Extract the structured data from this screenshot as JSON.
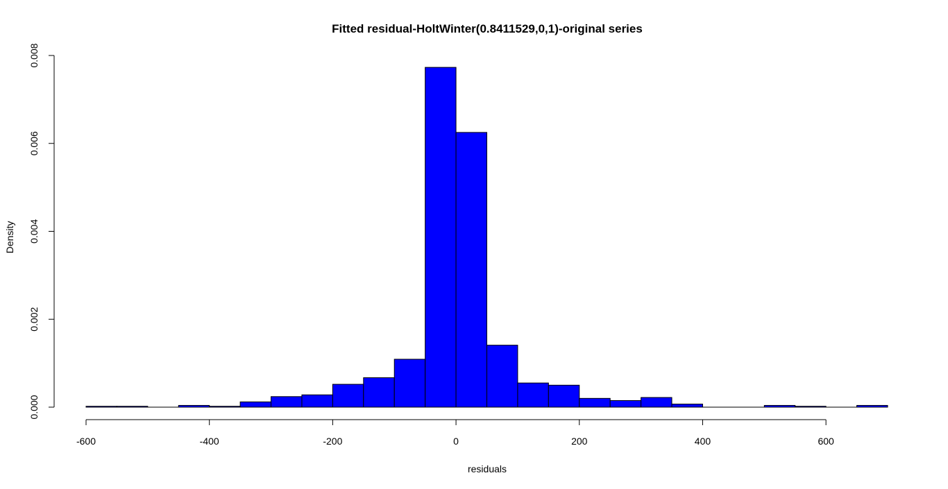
{
  "chart_data": {
    "type": "bar",
    "title": "Fitted residual-HoltWinter(0.8411529,0,1)-original series",
    "xlabel": "residuals",
    "ylabel": "Density",
    "xlim": [
      -600,
      700
    ],
    "ylim": [
      0,
      0.008
    ],
    "xticks": [
      -600,
      -400,
      -200,
      0,
      200,
      400,
      600
    ],
    "xtick_labels": [
      "-600",
      "-400",
      "-200",
      "0",
      "200",
      "400",
      "600"
    ],
    "yticks": [
      0,
      0.002,
      0.004,
      0.006,
      0.008
    ],
    "ytick_labels": [
      "0.000",
      "0.002",
      "0.004",
      "0.006",
      "0.008"
    ],
    "grid": false,
    "legend": "none",
    "bar_color": "#0000ff",
    "edge_color": "#000000",
    "bin_width": 50,
    "bins": [
      {
        "x0": -600,
        "x1": -550,
        "density": 2e-05
      },
      {
        "x0": -550,
        "x1": -500,
        "density": 2e-05
      },
      {
        "x0": -500,
        "x1": -450,
        "density": 0.0
      },
      {
        "x0": -450,
        "x1": -400,
        "density": 4e-05
      },
      {
        "x0": -400,
        "x1": -350,
        "density": 2e-05
      },
      {
        "x0": -350,
        "x1": -300,
        "density": 0.00012
      },
      {
        "x0": -300,
        "x1": -250,
        "density": 0.00024
      },
      {
        "x0": -250,
        "x1": -200,
        "density": 0.00028
      },
      {
        "x0": -200,
        "x1": -150,
        "density": 0.00052
      },
      {
        "x0": -150,
        "x1": -100,
        "density": 0.00067
      },
      {
        "x0": -100,
        "x1": -50,
        "density": 0.00109
      },
      {
        "x0": -50,
        "x1": 0,
        "density": 0.00773
      },
      {
        "x0": 0,
        "x1": 50,
        "density": 0.00625
      },
      {
        "x0": 50,
        "x1": 100,
        "density": 0.00141
      },
      {
        "x0": 100,
        "x1": 150,
        "density": 0.00055
      },
      {
        "x0": 150,
        "x1": 200,
        "density": 0.0005
      },
      {
        "x0": 200,
        "x1": 250,
        "density": 0.0002
      },
      {
        "x0": 250,
        "x1": 300,
        "density": 0.00015
      },
      {
        "x0": 300,
        "x1": 350,
        "density": 0.00022
      },
      {
        "x0": 350,
        "x1": 400,
        "density": 7e-05
      },
      {
        "x0": 400,
        "x1": 450,
        "density": 0.0
      },
      {
        "x0": 450,
        "x1": 500,
        "density": 0.0
      },
      {
        "x0": 500,
        "x1": 550,
        "density": 4e-05
      },
      {
        "x0": 550,
        "x1": 600,
        "density": 2e-05
      },
      {
        "x0": 600,
        "x1": 650,
        "density": 0.0
      },
      {
        "x0": 650,
        "x1": 700,
        "density": 4e-05
      }
    ]
  }
}
